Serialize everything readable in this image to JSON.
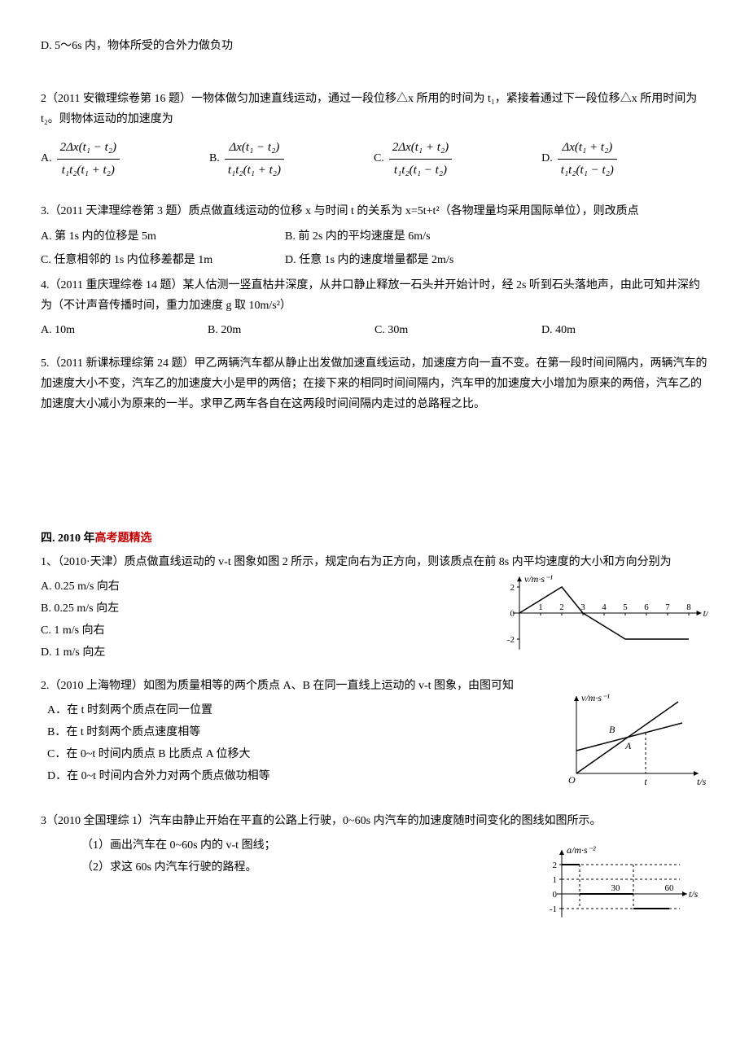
{
  "q1_optD": "D. 5～6s 内，物体所受的合外力做负功",
  "q2_stem": "2（2011 安徽理综卷第 16 题）一物体做匀加速直线运动，通过一段位移△x 所用的时间为 t₁，紧接着通过下一段位移△x 所用时间为 t₂。则物体运动的加速度为",
  "q2_labels": {
    "A": "A.",
    "B": "B.",
    "C": "C.",
    "D": "D."
  },
  "q2_frac": {
    "A_num": "2Δx(t₁ − t₂)",
    "A_den": "t₁t₂(t₁ + t₂)",
    "B_num": "Δx(t₁ − t₂)",
    "B_den": "t₁t₂(t₁ + t₂)",
    "C_num": "2Δx(t₁ + t₂)",
    "C_den": "t₁t₂(t₁ − t₂)",
    "D_num": "Δx(t₁ + t₂)",
    "D_den": "t₁t₂(t₁ − t₂)"
  },
  "q3_stem": "3.（2011 天津理综卷第 3 题）质点做直线运动的位移 x 与时间 t 的关系为 x=5t+t²（各物理量均采用国际单位），则改质点",
  "q3_A": "A. 第 1s 内的位移是 5m",
  "q3_B": "B. 前 2s 内的平均速度是 6m/s",
  "q3_C": "C. 任意相邻的 1s 内位移差都是 1m",
  "q3_D": "D. 任意 1s 内的速度增量都是 2m/s",
  "q4_stem": "4.（2011 重庆理综卷 14 题）某人估测一竖直枯井深度，从井口静止释放一石头并开始计时，经 2s 听到石头落地声，由此可知井深约为（不计声音传播时间，重力加速度 g 取 10m/s²）",
  "q4_A": "A. 10m",
  "q4_B": "B. 20m",
  "q4_C": "C. 30m",
  "q4_D": "D. 40m",
  "q5_stem": "5.（2011 新课标理综第 24 题）甲乙两辆汽车都从静止出发做加速直线运动，加速度方向一直不变。在第一段时间间隔内，两辆汽车的加速度大小不变，汽车乙的加速度大小是甲的两倍；在接下来的相同时间间隔内，汽车甲的加速度大小增加为原来的两倍，汽车乙的加速度大小减小为原来的一半。求甲乙两车各自在这两段时间间隔内走过的总路程之比。",
  "sec4_title_a": "四. 2010 年",
  "sec4_title_b": "高考题精选",
  "p1_stem": "1、（2010·天津）质点做直线运动的 v-t 图象如图 2 所示，规定向右为正方向，则该质点在前 8s 内平均速度的大小和方向分别为",
  "p1_A": "A. 0.25 m/s   向右",
  "p1_B": "B. 0.25 m/s   向左",
  "p1_C": "C. 1 m/s   向右",
  "p1_D": "D. 1 m/s   向左",
  "p1_chart": {
    "y_label": "v/m·s⁻¹",
    "x_label": "t/s",
    "x_ticks": [
      1,
      2,
      3,
      4,
      5,
      6,
      7,
      8
    ],
    "y_ticks": [
      -2,
      0,
      2
    ],
    "points": [
      [
        0,
        0
      ],
      [
        2,
        2
      ],
      [
        3,
        0
      ],
      [
        5,
        -2
      ],
      [
        8,
        -2
      ]
    ],
    "axis_color": "#000",
    "line_color": "#000"
  },
  "p2_stem_a": "2.（2010 上海物理）",
  "p2_stem_b": "如图为质量相等的两个质点 A、B 在同一直线上运动的 v-t 图象，由图可知",
  "p2_A": "A．在 t 时刻两个质点在同一位置",
  "p2_B": "B．在 t 时刻两个质点速度相等",
  "p2_C": "C．在 0~t 时间内质点 B 比质点 A 位移大",
  "p2_D": "D．在 0~t 时间内合外力对两个质点做功相等",
  "p2_chart": {
    "y_label": "v/m·s⁻¹",
    "x_label": "t/s",
    "labelA": "A",
    "labelB": "B",
    "t_label": "t",
    "O": "O",
    "axis_color": "#000",
    "line_color": "#000"
  },
  "p3_stem": "3（2010 全国理综 1）汽车由静止开始在平直的公路上行驶，0~60s 内汽车的加速度随时间变化的图线如图所示。",
  "p3_sub1": "（1）画出汽车在 0~60s 内的 v-t 图线；",
  "p3_sub2": "（2）求这 60s 内汽车行驶的路程。",
  "p3_chart": {
    "y_label": "a/m·s⁻²",
    "x_label": "t/s",
    "x_ticks": [
      30,
      60
    ],
    "y_ticks": [
      -1,
      0,
      1,
      2
    ],
    "segments": [
      [
        [
          0,
          2
        ],
        [
          10,
          2
        ]
      ],
      [
        [
          10,
          0
        ],
        [
          40,
          0
        ]
      ],
      [
        [
          40,
          -1
        ],
        [
          60,
          -1
        ]
      ]
    ],
    "axis_color": "#000",
    "line_color": "#000",
    "dash_color": "#000"
  }
}
